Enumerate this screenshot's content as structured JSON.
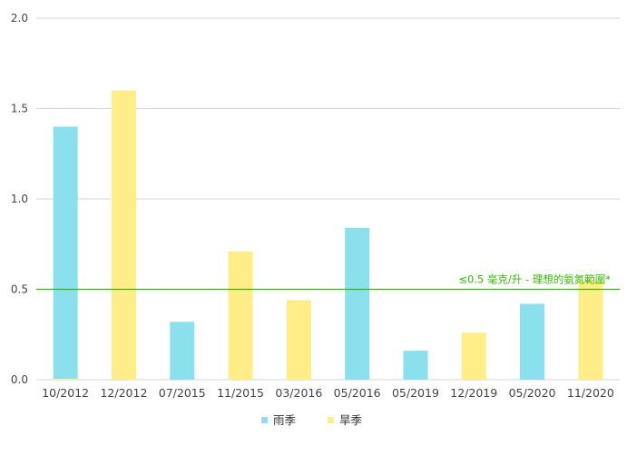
{
  "chart_data": {
    "type": "bar",
    "categories": [
      "10/2012",
      "12/2012",
      "07/2015",
      "11/2015",
      "03/2016",
      "05/2016",
      "05/2019",
      "12/2019",
      "05/2020",
      "11/2020"
    ],
    "series": [
      {
        "name": "雨季",
        "color": "#8ae1ed",
        "values": [
          1.4,
          null,
          0.32,
          null,
          null,
          0.84,
          0.16,
          null,
          0.42,
          null
        ]
      },
      {
        "name": "旱季",
        "color": "#ffee88",
        "values": [
          0.005,
          1.6,
          null,
          0.71,
          0.44,
          null,
          null,
          0.26,
          null,
          0.55
        ]
      }
    ],
    "ylim": [
      0,
      2.0
    ],
    "yticks": [
      "0.0",
      "0.5",
      "1.0",
      "1.5",
      "2.0"
    ],
    "grid": true,
    "legend": "bottom",
    "reference_line": {
      "value": 0.5,
      "label": "≤0.5 毫克/升 - 理想的氨氮範圍*",
      "color": "#33bb00"
    }
  }
}
